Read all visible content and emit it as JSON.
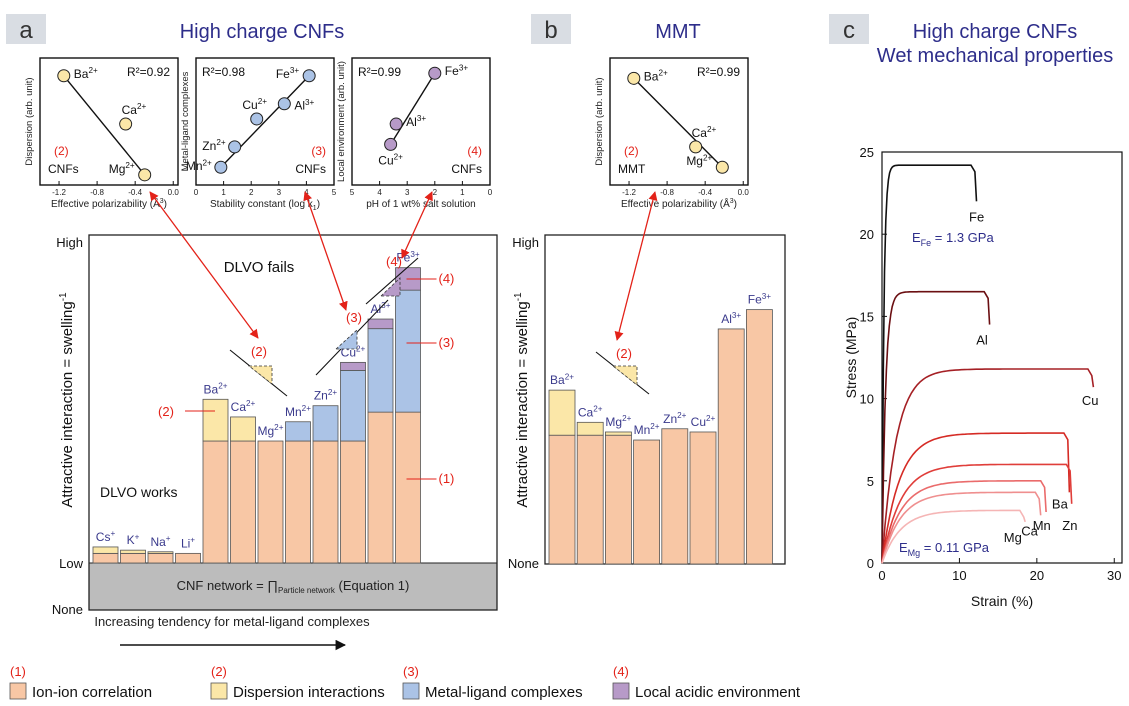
{
  "panels": {
    "a": {
      "letter": "a",
      "title": "High charge CNFs"
    },
    "b": {
      "letter": "b",
      "title": "MMT"
    },
    "c": {
      "letter": "c",
      "title_lines": [
        "High charge CNFs",
        "Wet mechanical properties"
      ]
    }
  },
  "colors": {
    "ion_ion": "#f8c7a5",
    "dispersion": "#fbe7a8",
    "metal_ligand": "#abc3e6",
    "acidic": "#b79ac8",
    "ion_purple": "#3a3a8c",
    "annot_red": "#e32219",
    "network_gray": "#bcbcbc"
  },
  "chart_data": [
    {
      "type": "scatter",
      "panel": "a1",
      "xlabel": "Effective polarizability (Å",
      "xlabel_sup": "3",
      "xlabel_close": ")",
      "ylabel": "Dispersion (arb. unit)",
      "xticks": [
        "-1.2",
        "-0.8",
        "-0.4",
        "0.0"
      ],
      "r2": "R²=0.92",
      "tag_num": "(2)",
      "tag_name": "CNFs",
      "points": [
        {
          "ion": "Ba",
          "sup": "2+",
          "x": -1.15,
          "y": 0.86
        },
        {
          "ion": "Ca",
          "sup": "2+",
          "x": -0.5,
          "y": 0.48
        },
        {
          "ion": "Mg",
          "sup": "2+",
          "x": -0.3,
          "y": 0.08
        }
      ]
    },
    {
      "type": "scatter",
      "panel": "a2",
      "xlabel": "Stability constant (log k",
      "xlabel_sub": "1",
      "xlabel_close": ")",
      "ylabel": "Metal-ligand complexes",
      "xticks": [
        "0",
        "1",
        "2",
        "3",
        "4",
        "5"
      ],
      "r2": "R²=0.98",
      "tag_num": "(3)",
      "tag_name": "CNFs",
      "points": [
        {
          "ion": "Mn",
          "sup": "2+",
          "x": 0.9,
          "y": 0.14
        },
        {
          "ion": "Zn",
          "sup": "2+",
          "x": 1.4,
          "y": 0.3
        },
        {
          "ion": "Cu",
          "sup": "2+",
          "x": 2.2,
          "y": 0.52
        },
        {
          "ion": "Al",
          "sup": "3+",
          "x": 3.2,
          "y": 0.64
        },
        {
          "ion": "Fe",
          "sup": "3+",
          "x": 4.1,
          "y": 0.86
        }
      ]
    },
    {
      "type": "scatter",
      "panel": "a3",
      "xlabel": "pH of 1 wt% salt solution",
      "ylabel": "Local environment (arb. unit)",
      "xticks": [
        "5",
        "4",
        "3",
        "2",
        "1",
        "0"
      ],
      "r2": "R²=0.99",
      "tag_num": "(4)",
      "tag_name": "CNFs",
      "points": [
        {
          "ion": "Cu",
          "sup": "2+",
          "x": 3.6,
          "y": 0.32
        },
        {
          "ion": "Al",
          "sup": "3+",
          "x": 3.4,
          "y": 0.48
        },
        {
          "ion": "Fe",
          "sup": "3+",
          "x": 2.0,
          "y": 0.88
        }
      ]
    },
    {
      "type": "scatter",
      "panel": "b1",
      "xlabel": "Effective polarizability (Å",
      "xlabel_sup": "3",
      "xlabel_close": ")",
      "ylabel": "Dispersion (arb. unit)",
      "xticks": [
        "-1.2",
        "-0.8",
        "-0.4",
        "0.0"
      ],
      "r2": "R²=0.99",
      "tag_num": "(2)",
      "tag_name": "MMT",
      "points": [
        {
          "ion": "Ba",
          "sup": "2+",
          "x": -1.15,
          "y": 0.84
        },
        {
          "ion": "Ca",
          "sup": "2+",
          "x": -0.5,
          "y": 0.3
        },
        {
          "ion": "Mg",
          "sup": "2+",
          "x": -0.22,
          "y": 0.14
        }
      ]
    },
    {
      "type": "bar",
      "panel": "a",
      "ylabel": "Attractive interaction = swelling",
      "ylabel_sup": "-1",
      "yticks": [
        "High",
        "Low",
        "None"
      ],
      "caption": "Increasing tendency for metal-ligand complexes",
      "text_fails": "DLVO fails",
      "text_works": "DLVO works",
      "network_text": "CNF network = ∏",
      "network_sub": "Particle network",
      "network_eq": "(Equation 1)",
      "annotations": [
        "(1)",
        "(2)",
        "(3)",
        "(4)"
      ],
      "bars": [
        {
          "ion": "Cs",
          "sup": "+",
          "ion_ion": 0.03,
          "dispersion": 0.02,
          "metal_ligand": 0,
          "acidic": 0
        },
        {
          "ion": "K",
          "sup": "+",
          "ion_ion": 0.03,
          "dispersion": 0.01,
          "metal_ligand": 0,
          "acidic": 0
        },
        {
          "ion": "Na",
          "sup": "+",
          "ion_ion": 0.03,
          "dispersion": 0.005,
          "metal_ligand": 0,
          "acidic": 0
        },
        {
          "ion": "Li",
          "sup": "+",
          "ion_ion": 0.03,
          "dispersion": 0,
          "metal_ligand": 0,
          "acidic": 0
        },
        {
          "ion": "Ba",
          "sup": "2+",
          "ion_ion": 0.38,
          "dispersion": 0.13,
          "metal_ligand": 0,
          "acidic": 0
        },
        {
          "ion": "Ca",
          "sup": "2+",
          "ion_ion": 0.38,
          "dispersion": 0.075,
          "metal_ligand": 0,
          "acidic": 0
        },
        {
          "ion": "Mg",
          "sup": "2+",
          "ion_ion": 0.38,
          "dispersion": 0,
          "metal_ligand": 0,
          "acidic": 0
        },
        {
          "ion": "Mn",
          "sup": "2+",
          "ion_ion": 0.38,
          "dispersion": 0,
          "metal_ligand": 0.06,
          "acidic": 0
        },
        {
          "ion": "Zn",
          "sup": "2+",
          "ion_ion": 0.38,
          "dispersion": 0,
          "metal_ligand": 0.11,
          "acidic": 0
        },
        {
          "ion": "Cu",
          "sup": "2+",
          "ion_ion": 0.38,
          "dispersion": 0,
          "metal_ligand": 0.22,
          "acidic": 0.025
        },
        {
          "ion": "Al",
          "sup": "3+",
          "ion_ion": 0.47,
          "dispersion": 0,
          "metal_ligand": 0.26,
          "acidic": 0.03
        },
        {
          "ion": "Fe",
          "sup": "3+",
          "ion_ion": 0.47,
          "dispersion": 0,
          "metal_ligand": 0.38,
          "acidic": 0.07
        }
      ]
    },
    {
      "type": "bar",
      "panel": "b",
      "ylabel": "Attractive interaction = swelling",
      "ylabel_sup": "-1",
      "yticks": [
        "High",
        "None"
      ],
      "annotation": "(2)",
      "bars": [
        {
          "ion": "Ba",
          "sup": "2+",
          "ion_ion": 0.4,
          "dispersion": 0.14
        },
        {
          "ion": "Ca",
          "sup": "2+",
          "ion_ion": 0.4,
          "dispersion": 0.04
        },
        {
          "ion": "Mg",
          "sup": "2+",
          "ion_ion": 0.4,
          "dispersion": 0.01
        },
        {
          "ion": "Mn",
          "sup": "2+",
          "ion_ion": 0.385,
          "dispersion": 0
        },
        {
          "ion": "Zn",
          "sup": "2+",
          "ion_ion": 0.42,
          "dispersion": 0
        },
        {
          "ion": "Cu",
          "sup": "2+",
          "ion_ion": 0.41,
          "dispersion": 0
        },
        {
          "ion": "Al",
          "sup": "3+",
          "ion_ion": 0.73,
          "dispersion": 0
        },
        {
          "ion": "Fe",
          "sup": "3+",
          "ion_ion": 0.79,
          "dispersion": 0
        }
      ]
    },
    {
      "type": "line",
      "panel": "c",
      "xlabel": "Strain (%)",
      "ylabel": "Stress (MPa)",
      "xlim": [
        0,
        31
      ],
      "ylim": [
        0,
        25
      ],
      "xticks": [
        0,
        10,
        20,
        30
      ],
      "yticks": [
        0,
        5,
        10,
        15,
        20,
        25
      ],
      "annot_fe": "E",
      "annot_fe_sub": "Fe",
      "annot_fe_val": " = 1.3 GPa",
      "annot_mg": "E",
      "annot_mg_sub": "Mg",
      "annot_mg_val": " = 0.11 GPa",
      "series": [
        {
          "name": "Fe",
          "color": "#111111",
          "x_end": 11.5,
          "y_end": 24.2,
          "k": 4.0,
          "tail": 22.0
        },
        {
          "name": "Al",
          "color": "#6b0f12",
          "x_end": 13.2,
          "y_end": 16.5,
          "k": 2.2,
          "tail": 14.5
        },
        {
          "name": "Cu",
          "color": "#a52025",
          "x_end": 26.6,
          "y_end": 11.8,
          "k": 0.55,
          "tail": 10.7
        },
        {
          "name": "Ba",
          "color": "#d52b25",
          "x_end": 23.5,
          "y_end": 7.9,
          "k": 0.45,
          "tail": 4.3
        },
        {
          "name": "Zn",
          "color": "#e03e3a",
          "x_end": 23.8,
          "y_end": 6.0,
          "k": 0.42,
          "tail": 3.6
        },
        {
          "name": "Mn",
          "color": "#ea6b6b",
          "x_end": 20.5,
          "y_end": 5.0,
          "k": 0.42,
          "tail": 3.1
        },
        {
          "name": "Ca",
          "color": "#ef8f8f",
          "x_end": 19.8,
          "y_end": 4.3,
          "k": 0.42,
          "tail": 2.9
        },
        {
          "name": "Mg",
          "color": "#f5b5b5",
          "x_end": 17.8,
          "y_end": 3.2,
          "k": 0.42,
          "tail": 2.5
        }
      ]
    }
  ],
  "legend": [
    {
      "num": "(1)",
      "label": "Ion-ion correlation",
      "color": "#f8c7a5"
    },
    {
      "num": "(2)",
      "label": "Dispersion interactions",
      "color": "#fbe7a8"
    },
    {
      "num": "(3)",
      "label": "Metal-ligand complexes",
      "color": "#abc3e6"
    },
    {
      "num": "(4)",
      "label": "Local acidic environment",
      "color": "#b79ac8"
    }
  ]
}
